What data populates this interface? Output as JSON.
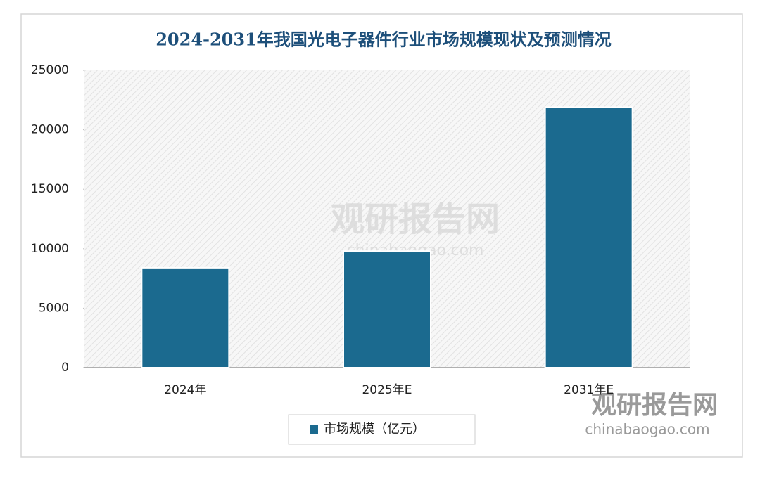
{
  "chart_data": {
    "type": "bar",
    "title": "2024-2031年我国光电子器件行业市场规模现状及预测情况",
    "categories": [
      "2024年",
      "2025年E",
      "2031年E"
    ],
    "series": [
      {
        "name": "市场规模（亿元）",
        "color": "#1b6a8f",
        "values": [
          8400,
          9800,
          21900
        ]
      }
    ],
    "ylim": [
      0,
      25000
    ],
    "yticks": [
      0,
      5000,
      10000,
      15000,
      20000,
      25000
    ],
    "watermark": {
      "brand": "观研报告网",
      "site": "chinabaogao.com"
    }
  }
}
